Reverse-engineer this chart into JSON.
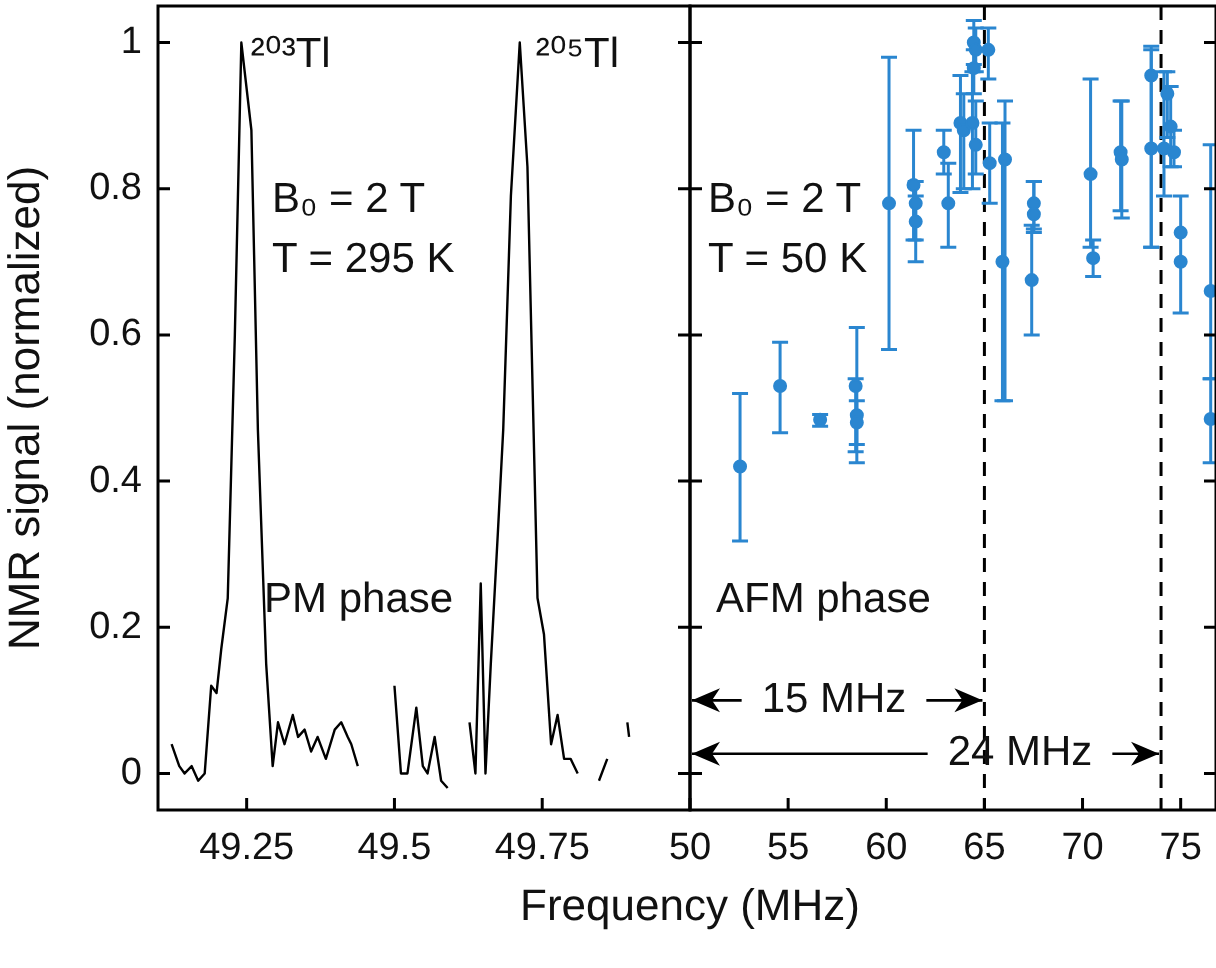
{
  "chart_data": [
    {
      "type": "line",
      "xlabel": "Frequency (MHz)",
      "ylabel": "NMR signal (normalized)",
      "xlim": [
        49.1,
        50.0
      ],
      "xticks": [
        49.25,
        49.5,
        49.75
      ],
      "ylim": [
        -0.05,
        1.05
      ],
      "yticks": [
        0,
        0.2,
        0.4,
        0.6,
        0.8,
        1
      ],
      "marker": "none",
      "line_style": "solid",
      "series": [
        {
          "color": "#000000",
          "x": [
            49.123,
            49.136,
            49.145,
            49.157,
            49.168,
            49.179,
            49.19,
            49.199,
            49.207,
            49.218,
            49.23,
            49.241,
            49.258,
            49.269,
            49.283,
            49.294,
            49.303,
            49.314,
            49.328,
            49.337,
            49.348,
            49.359,
            49.37,
            49.384,
            49.399,
            49.41,
            49.421,
            49.427,
            49.438,
            49.47,
            49.5,
            49.511,
            49.522,
            49.537,
            49.548,
            49.556,
            49.568,
            49.579,
            49.59,
            49.596,
            49.615,
            49.627,
            49.637,
            49.646,
            49.654,
            49.663,
            49.675,
            49.684,
            49.697,
            49.712,
            49.725,
            49.742,
            49.753,
            49.765,
            49.776,
            49.787,
            49.798,
            49.81,
            49.821,
            49.827,
            49.834,
            49.846,
            49.86,
            49.872,
            49.883,
            49.894,
            49.897
          ],
          "values": [
            0.04,
            0.01,
            0,
            0.01,
            -0.01,
            0,
            0.12,
            0.11,
            0.17,
            0.24,
            0.6,
            1.0,
            0.88,
            0.47,
            0.15,
            0.01,
            0.07,
            0.04,
            0.08,
            0.05,
            0.06,
            0.03,
            0.05,
            0.02,
            0.06,
            0.07,
            0.05,
            0.04,
            0.01,
            null,
            0.12,
            0,
            0,
            0.09,
            0.01,
            0,
            0.05,
            -0.01,
            -0.02,
            null,
            null,
            0.07,
            0,
            0.26,
            0,
            0.15,
            0.33,
            0.47,
            0.79,
            1.0,
            0.83,
            0.24,
            0.19,
            0.04,
            0.08,
            0.02,
            0.02,
            0,
            null,
            null,
            null,
            -0.01,
            0.02,
            null,
            null,
            0.07,
            0.05
          ]
        }
      ],
      "annotations": [
        "B₀ = 2 T",
        "T = 295 K",
        "PM phase",
        {
          "text": "²⁰³Tl",
          "x": 49.23,
          "y": 1.0
        },
        {
          "text": "²⁰⁵Tl",
          "x": 49.712,
          "y": 1.0
        }
      ]
    },
    {
      "type": "scatter",
      "xlim": [
        50,
        76.8
      ],
      "xticks": [
        50,
        55,
        60,
        65,
        70,
        75
      ],
      "ylim": [
        -0.05,
        1.05
      ],
      "yticks": [
        0,
        0.2,
        0.4,
        0.6,
        0.8,
        1
      ],
      "tick_labels": "x",
      "marker": "circle",
      "series": [
        {
          "color": "#2a86d0",
          "x": [
            52.55,
            54.59,
            56.63,
            58.44,
            58.5,
            58.5,
            60.14,
            61.39,
            61.5,
            61.5,
            62.93,
            63.16,
            63.78,
            63.95,
            64.39,
            64.46,
            64.56,
            64.46,
            64.56,
            65.2,
            65.27,
            66.05,
            65.92,
            67.52,
            67.52,
            67.41,
            70.41,
            70.54,
            71.94,
            72.0,
            73.5,
            73.5,
            74.15,
            74.32,
            74.49,
            74.66,
            75.0,
            75.0,
            76.53,
            76.53
          ],
          "values": [
            0.42,
            0.53,
            0.484,
            0.53,
            0.49,
            0.48,
            0.78,
            0.805,
            0.78,
            0.755,
            0.85,
            0.78,
            0.89,
            0.88,
            0.89,
            1.0,
            0.99,
            0.965,
            0.86,
            0.99,
            0.835,
            0.84,
            0.7,
            0.78,
            0.765,
            0.675,
            0.82,
            0.705,
            0.85,
            0.84,
            0.955,
            0.855,
            0.855,
            0.93,
            0.885,
            0.85,
            0.74,
            0.7,
            0.66,
            0.485
          ],
          "errors": [
            [
              0.318,
              0.52
            ],
            [
              0.466,
              0.59
            ],
            [
              0.475,
              0.491
            ],
            [
              0.44,
              0.54
            ],
            [
              0.425,
              0.61
            ],
            [
              0.45,
              0.51
            ],
            [
              0.58,
              0.98
            ],
            [
              0.73,
              0.88
            ],
            [
              0.73,
              0.81
            ],
            [
              0.7,
              0.79
            ],
            [
              0.82,
              0.88
            ],
            [
              0.72,
              0.835
            ],
            [
              0.795,
              0.955
            ],
            [
              0.8,
              0.93
            ],
            [
              0.8,
              0.96
            ],
            [
              0.97,
              1.03
            ],
            [
              0.96,
              1.02
            ],
            [
              0.93,
              0.99
            ],
            [
              0.82,
              0.92
            ],
            [
              0.95,
              1.02
            ],
            [
              0.78,
              0.89
            ],
            [
              0.51,
              0.92
            ],
            [
              0.51,
              0.89
            ],
            [
              0.74,
              0.81
            ],
            [
              0.745,
              0.81
            ],
            [
              0.6,
              0.75
            ],
            [
              0.72,
              0.95
            ],
            [
              0.68,
              0.73
            ],
            [
              0.77,
              0.92
            ],
            [
              0.76,
              0.92
            ],
            [
              0.72,
              0.995
            ],
            [
              0.72,
              0.99
            ],
            [
              0.79,
              0.96
            ],
            [
              0.87,
              0.96
            ],
            [
              0.83,
              0.94
            ],
            [
              0.83,
              0.88
            ],
            [
              0.63,
              0.79
            ],
            null,
            [
              0.54,
              0.86
            ],
            [
              0.425,
              0.54
            ]
          ]
        }
      ],
      "ref_lines": [
        {
          "axis": "x",
          "value": 65,
          "color": "#000000",
          "line_style": "dashed"
        },
        {
          "axis": "x",
          "value": 74,
          "color": "#000000",
          "line_style": "dashed"
        }
      ],
      "annotations": [
        "B₀ = 2 T",
        "T = 50 K",
        "AFM phase",
        {
          "text": "15 MHz",
          "x": 65,
          "y": 0.1
        },
        {
          "text": "24 MHz",
          "x": 74,
          "y": 0.027
        }
      ]
    }
  ]
}
